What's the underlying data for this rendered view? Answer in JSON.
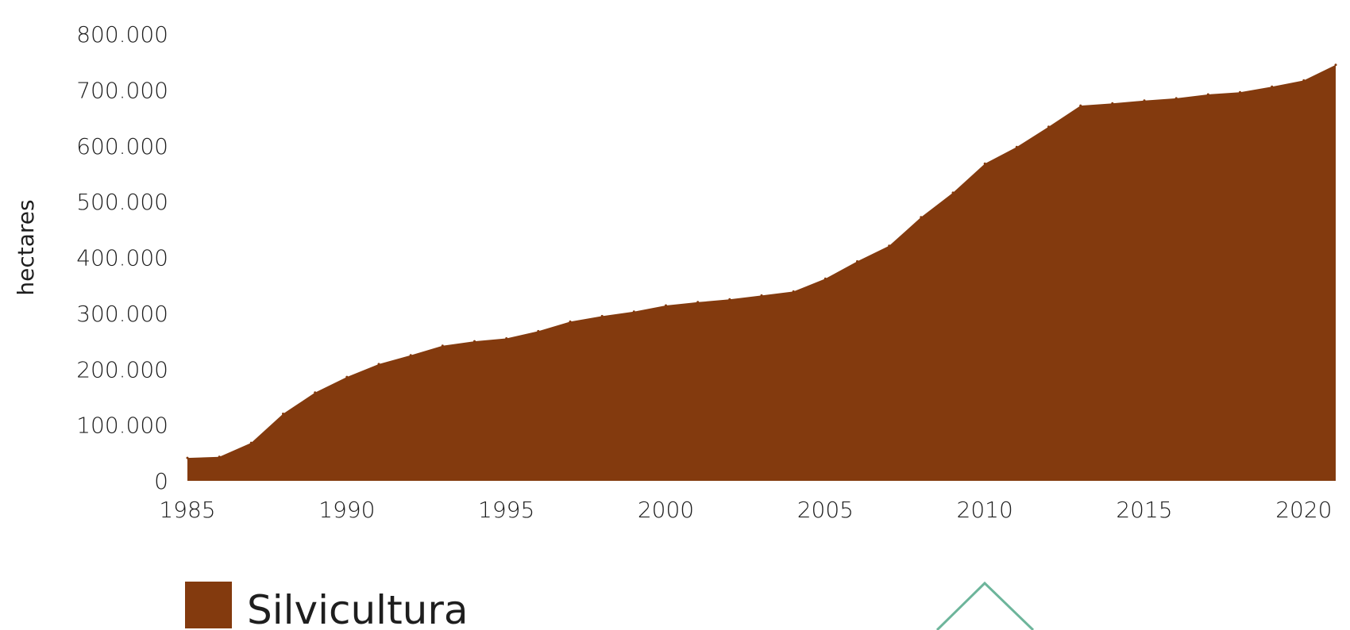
{
  "chart_data": {
    "type": "area",
    "title": "",
    "xlabel": "",
    "ylabel": "hectares",
    "xlim": [
      1985,
      2021
    ],
    "ylim": [
      0,
      800000
    ],
    "y_ticks": [
      {
        "value": 0,
        "label": "0"
      },
      {
        "value": 100000,
        "label": "100.000"
      },
      {
        "value": 200000,
        "label": "200.000"
      },
      {
        "value": 300000,
        "label": "300.000"
      },
      {
        "value": 400000,
        "label": "400.000"
      },
      {
        "value": 500000,
        "label": "500.000"
      },
      {
        "value": 600000,
        "label": "600.000"
      },
      {
        "value": 700000,
        "label": "700.000"
      },
      {
        "value": 800000,
        "label": "800.000"
      }
    ],
    "x_ticks": [
      {
        "value": 1985,
        "label": "1985"
      },
      {
        "value": 1990,
        "label": "1990"
      },
      {
        "value": 1995,
        "label": "1995"
      },
      {
        "value": 2000,
        "label": "2000"
      },
      {
        "value": 2005,
        "label": "2005"
      },
      {
        "value": 2010,
        "label": "2010"
      },
      {
        "value": 2015,
        "label": "2015"
      },
      {
        "value": 2020,
        "label": "2020"
      }
    ],
    "grid": false,
    "legend_position": "bottom-left",
    "x": [
      1985,
      1986,
      1987,
      1988,
      1989,
      1990,
      1991,
      1992,
      1993,
      1994,
      1995,
      1996,
      1997,
      1998,
      1999,
      2000,
      2001,
      2002,
      2003,
      2004,
      2005,
      2006,
      2007,
      2008,
      2009,
      2010,
      2011,
      2012,
      2013,
      2014,
      2015,
      2016,
      2017,
      2018,
      2019,
      2020,
      2021
    ],
    "series": [
      {
        "name": "Silvicultura",
        "color": "#833a0e",
        "values": [
          41000,
          43000,
          68000,
          120000,
          158000,
          186000,
          209000,
          225000,
          242000,
          250000,
          255000,
          268000,
          285000,
          295000,
          303000,
          314000,
          320000,
          325000,
          332000,
          339000,
          362000,
          393000,
          421000,
          472000,
          516000,
          568000,
          598000,
          634000,
          672000,
          676000,
          681000,
          685000,
          692000,
          696000,
          706000,
          717000,
          745000
        ]
      }
    ]
  }
}
